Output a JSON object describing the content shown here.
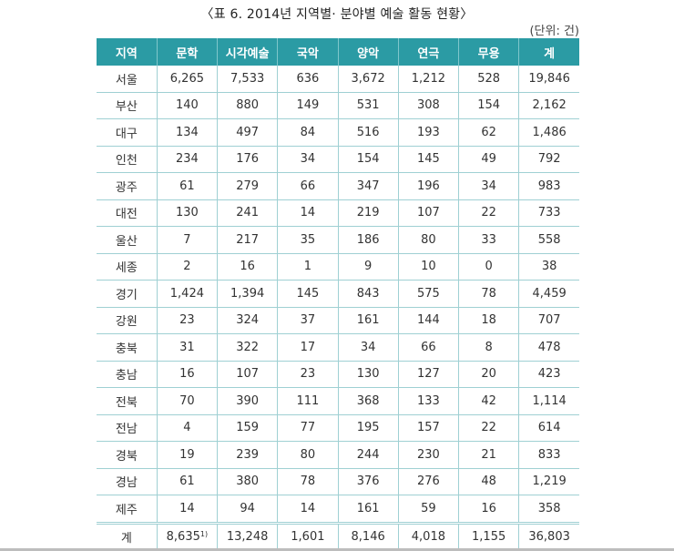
{
  "title": "〈표 6. 2014년 지역별· 분야별 예술 활동 현황〉",
  "unit": "(단위: 건)",
  "table": {
    "headers": [
      "지역",
      "문학",
      "시각예술",
      "국악",
      "양악",
      "연극",
      "무용",
      "계"
    ],
    "rows": [
      [
        "서울",
        "6,265",
        "7,533",
        "636",
        "3,672",
        "1,212",
        "528",
        "19,846"
      ],
      [
        "부산",
        "140",
        "880",
        "149",
        "531",
        "308",
        "154",
        "2,162"
      ],
      [
        "대구",
        "134",
        "497",
        "84",
        "516",
        "193",
        "62",
        "1,486"
      ],
      [
        "인천",
        "234",
        "176",
        "34",
        "154",
        "145",
        "49",
        "792"
      ],
      [
        "광주",
        "61",
        "279",
        "66",
        "347",
        "196",
        "34",
        "983"
      ],
      [
        "대전",
        "130",
        "241",
        "14",
        "219",
        "107",
        "22",
        "733"
      ],
      [
        "울산",
        "7",
        "217",
        "35",
        "186",
        "80",
        "33",
        "558"
      ],
      [
        "세종",
        "2",
        "16",
        "1",
        "9",
        "10",
        "0",
        "38"
      ],
      [
        "경기",
        "1,424",
        "1,394",
        "145",
        "843",
        "575",
        "78",
        "4,459"
      ],
      [
        "강원",
        "23",
        "324",
        "37",
        "161",
        "144",
        "18",
        "707"
      ],
      [
        "충북",
        "31",
        "322",
        "17",
        "34",
        "66",
        "8",
        "478"
      ],
      [
        "충남",
        "16",
        "107",
        "23",
        "130",
        "127",
        "20",
        "423"
      ],
      [
        "전북",
        "70",
        "390",
        "111",
        "368",
        "133",
        "42",
        "1,114"
      ],
      [
        "전남",
        "4",
        "159",
        "77",
        "195",
        "157",
        "22",
        "614"
      ],
      [
        "경북",
        "19",
        "239",
        "80",
        "244",
        "230",
        "21",
        "833"
      ],
      [
        "경남",
        "61",
        "380",
        "78",
        "376",
        "276",
        "48",
        "1,219"
      ],
      [
        "제주",
        "14",
        "94",
        "14",
        "161",
        "59",
        "16",
        "358"
      ]
    ],
    "total": {
      "label": "계",
      "literature": "8,635",
      "literature_footnote": "1)",
      "values": [
        "13,248",
        "1,601",
        "8,146",
        "4,018",
        "1,155",
        "36,803"
      ]
    }
  },
  "colors": {
    "header_bg": "#2b9ba4",
    "grid": "#9fd0d3"
  }
}
